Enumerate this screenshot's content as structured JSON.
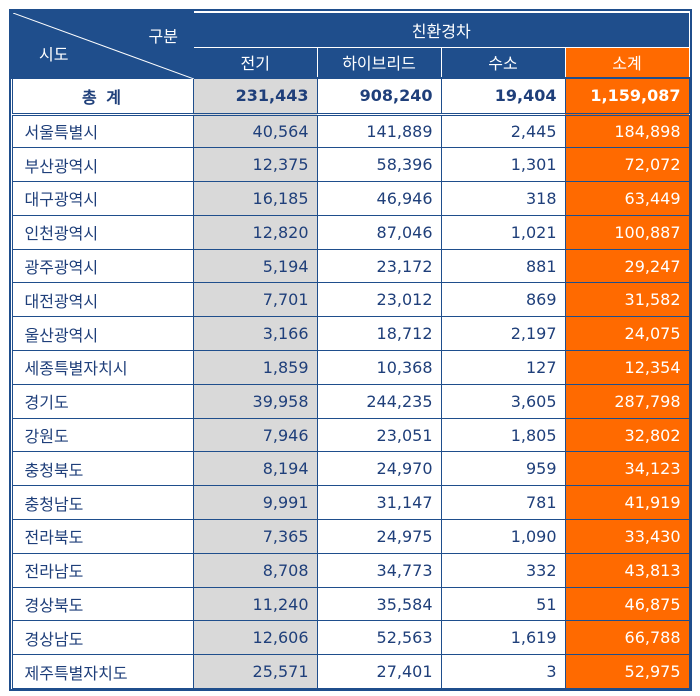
{
  "header": {
    "corner_top": "구분",
    "corner_bottom": "시도",
    "group_label": "친환경차",
    "columns": [
      "전기",
      "하이브리드",
      "수소",
      "소계"
    ]
  },
  "total": {
    "name": "총 계",
    "values": [
      "231,443",
      "908,240",
      "19,404",
      "1,159,087"
    ]
  },
  "rows": [
    {
      "name": "서울특별시",
      "values": [
        "40,564",
        "141,889",
        "2,445",
        "184,898"
      ]
    },
    {
      "name": "부산광역시",
      "values": [
        "12,375",
        "58,396",
        "1,301",
        "72,072"
      ]
    },
    {
      "name": "대구광역시",
      "values": [
        "16,185",
        "46,946",
        "318",
        "63,449"
      ]
    },
    {
      "name": "인천광역시",
      "values": [
        "12,820",
        "87,046",
        "1,021",
        "100,887"
      ]
    },
    {
      "name": "광주광역시",
      "values": [
        "5,194",
        "23,172",
        "881",
        "29,247"
      ]
    },
    {
      "name": "대전광역시",
      "values": [
        "7,701",
        "23,012",
        "869",
        "31,582"
      ]
    },
    {
      "name": "울산광역시",
      "values": [
        "3,166",
        "18,712",
        "2,197",
        "24,075"
      ]
    },
    {
      "name": "세종특별자치시",
      "values": [
        "1,859",
        "10,368",
        "127",
        "12,354"
      ]
    },
    {
      "name": "경기도",
      "values": [
        "39,958",
        "244,235",
        "3,605",
        "287,798"
      ]
    },
    {
      "name": "강원도",
      "values": [
        "7,946",
        "23,051",
        "1,805",
        "32,802"
      ]
    },
    {
      "name": "충청북도",
      "values": [
        "8,194",
        "24,970",
        "959",
        "34,123"
      ]
    },
    {
      "name": "충청남도",
      "values": [
        "9,991",
        "31,147",
        "781",
        "41,919"
      ]
    },
    {
      "name": "전라북도",
      "values": [
        "7,365",
        "24,975",
        "1,090",
        "33,430"
      ]
    },
    {
      "name": "전라남도",
      "values": [
        "8,708",
        "34,773",
        "332",
        "43,813"
      ]
    },
    {
      "name": "경상북도",
      "values": [
        "11,240",
        "35,584",
        "51",
        "46,875"
      ]
    },
    {
      "name": "경상남도",
      "values": [
        "12,606",
        "52,563",
        "1,619",
        "66,788"
      ]
    },
    {
      "name": "제주특별자치도",
      "values": [
        "25,571",
        "27,401",
        "3",
        "52,975"
      ]
    }
  ],
  "colors": {
    "header_blue": "#1f4e8c",
    "subtotal_orange": "#ff6a00",
    "electric_gray": "#d9d9d9",
    "text_blue": "#1f3f7a"
  },
  "chart_data": {
    "type": "table",
    "columns": [
      "시도",
      "전기",
      "하이브리드",
      "수소",
      "소계"
    ],
    "total": {
      "name": "총 계",
      "전기": 231443,
      "하이브리드": 908240,
      "수소": 19404,
      "소계": 1159087
    },
    "rows": [
      [
        "서울특별시",
        40564,
        141889,
        2445,
        184898
      ],
      [
        "부산광역시",
        12375,
        58396,
        1301,
        72072
      ],
      [
        "대구광역시",
        16185,
        46946,
        318,
        63449
      ],
      [
        "인천광역시",
        12820,
        87046,
        1021,
        100887
      ],
      [
        "광주광역시",
        5194,
        23172,
        881,
        29247
      ],
      [
        "대전광역시",
        7701,
        23012,
        869,
        31582
      ],
      [
        "울산광역시",
        3166,
        18712,
        2197,
        24075
      ],
      [
        "세종특별자치시",
        1859,
        10368,
        127,
        12354
      ],
      [
        "경기도",
        39958,
        244235,
        3605,
        287798
      ],
      [
        "강원도",
        7946,
        23051,
        1805,
        32802
      ],
      [
        "충청북도",
        8194,
        24970,
        959,
        34123
      ],
      [
        "충청남도",
        9991,
        31147,
        781,
        41919
      ],
      [
        "전라북도",
        7365,
        24975,
        1090,
        33430
      ],
      [
        "전라남도",
        8708,
        34773,
        332,
        43813
      ],
      [
        "경상북도",
        11240,
        35584,
        51,
        46875
      ],
      [
        "경상남도",
        12606,
        52563,
        1619,
        66788
      ],
      [
        "제주특별자치도",
        25571,
        27401,
        3,
        52975
      ]
    ]
  }
}
